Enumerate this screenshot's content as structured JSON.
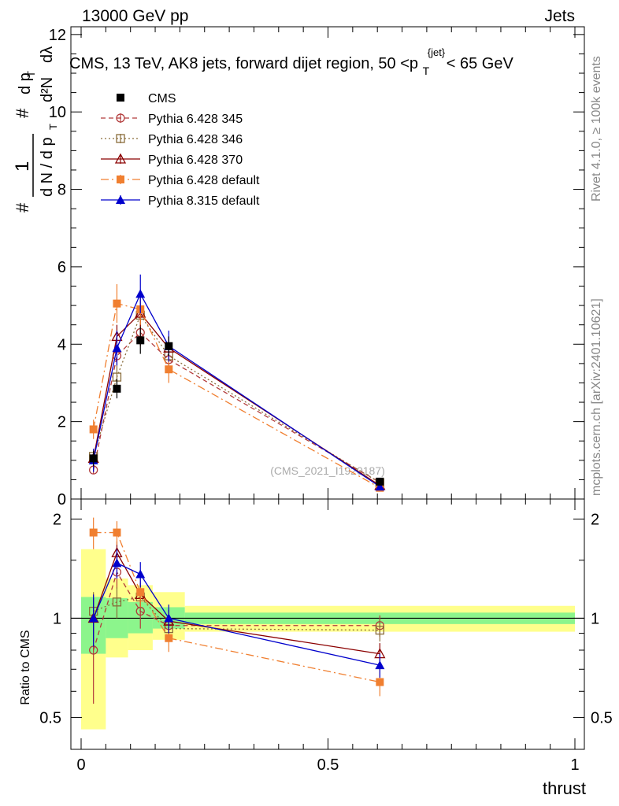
{
  "header": {
    "left": "13000 GeV pp",
    "right": "Jets"
  },
  "side_labels": {
    "rivet": "Rivet 4.1.0, ≥ 100k events",
    "mcplots": "mcplots.cern.ch [arXiv:2401.10621]"
  },
  "watermark": "(CMS_2021_I1920187)",
  "chart_data": {
    "type": "line",
    "title": "CMS, 13 TeV, AK8 jets, forward dijet region, 50 <p",
    "title_sub": "T",
    "title_sup": "{jet}",
    "title_tail": "< 65 GeV",
    "xlabel": "thrust",
    "ylabel": "1/N dN/dp_T d²N/dp_T dλ",
    "ylabel_parts": {
      "hash": "#",
      "one": "1",
      "dN": "d N / d p",
      "T": "T",
      "hash2": "#",
      "dpT": "d p",
      "T2": "T",
      "d2N": "d²N",
      "dlambda": "dλ"
    },
    "xlim": [
      0,
      1
    ],
    "ylim": [
      0,
      12.2
    ],
    "xticks": [
      "0",
      "0.5",
      "1"
    ],
    "yticks": [
      "0",
      "2",
      "4",
      "6",
      "8",
      "10",
      "12"
    ],
    "bins": [
      0.0,
      0.05,
      0.095,
      0.145,
      0.21,
      1.0
    ],
    "x": [
      0.025,
      0.0725,
      0.12,
      0.1775,
      0.605
    ],
    "legend_position": "top-left",
    "series": [
      {
        "name": "CMS",
        "values": [
          1.05,
          2.85,
          4.1,
          3.95,
          0.45
        ],
        "errors": [
          0.2,
          0.25,
          0.35,
          0.25,
          0.05
        ],
        "color": "#000000",
        "marker": "square-filled",
        "dash": "none"
      },
      {
        "name": "Pythia 6.428 345",
        "values": [
          0.75,
          3.7,
          4.3,
          3.6,
          0.43
        ],
        "errors": [
          0.1,
          0.25,
          0.35,
          0.3,
          0.03
        ],
        "color": "#b23b3b",
        "marker": "circle-open",
        "dash": "6,4"
      },
      {
        "name": "Pythia 6.428 346",
        "values": [
          1.1,
          3.15,
          4.75,
          3.7,
          0.42
        ],
        "errors": [
          0.15,
          0.3,
          0.35,
          0.3,
          0.03
        ],
        "color": "#8a6d3b",
        "marker": "square-open",
        "dash": "2,3"
      },
      {
        "name": "Pythia 6.428 370",
        "values": [
          1.05,
          4.2,
          4.8,
          3.9,
          0.35
        ],
        "errors": [
          0.15,
          0.3,
          0.35,
          0.3,
          0.03
        ],
        "color": "#8b0000",
        "marker": "triangle-open",
        "dash": "none"
      },
      {
        "name": "Pythia 6.428 default",
        "values": [
          1.8,
          5.05,
          4.9,
          3.35,
          0.29
        ],
        "errors": [
          0.25,
          0.5,
          0.4,
          0.35,
          0.03
        ],
        "color": "#f07f30",
        "marker": "square-filled",
        "dash": "10,4,2,4"
      },
      {
        "name": "Pythia 8.315 default",
        "values": [
          1.0,
          3.9,
          5.3,
          3.95,
          0.32
        ],
        "errors": [
          0.3,
          0.45,
          0.5,
          0.4,
          0.03
        ],
        "color": "#0000cc",
        "marker": "triangle-filled",
        "dash": "none"
      }
    ],
    "ratio": {
      "ylabel": "Ratio to CMS",
      "ylim": [
        0.4,
        2.3
      ],
      "yticks": [
        "0.5",
        "1",
        "2"
      ],
      "band_inner": [
        [
          0.78,
          1.16
        ],
        [
          0.87,
          1.15
        ],
        [
          0.9,
          1.12
        ],
        [
          0.93,
          1.08
        ],
        [
          0.96,
          1.04
        ]
      ],
      "band_outer": [
        [
          0.46,
          1.62
        ],
        [
          0.76,
          1.32
        ],
        [
          0.8,
          1.26
        ],
        [
          0.86,
          1.2
        ],
        [
          0.91,
          1.09
        ]
      ],
      "series": [
        {
          "values": [
            0.8,
            1.38,
            1.05,
            0.95,
            0.95
          ],
          "errors": [
            0.25,
            0.15,
            0.12,
            0.08,
            0.07
          ]
        },
        {
          "values": [
            1.05,
            1.12,
            1.16,
            0.93,
            0.92
          ],
          "errors": [
            0.15,
            0.12,
            0.1,
            0.08,
            0.07
          ]
        },
        {
          "values": [
            1.0,
            1.58,
            1.18,
            0.98,
            0.78
          ],
          "errors": [
            0.15,
            0.13,
            0.1,
            0.08,
            0.06
          ]
        },
        {
          "values": [
            1.82,
            1.82,
            1.2,
            0.87,
            0.64
          ],
          "errors": [
            0.2,
            0.15,
            0.12,
            0.08,
            0.06
          ]
        },
        {
          "values": [
            1.0,
            1.47,
            1.36,
            1.0,
            0.72
          ],
          "errors": [
            0.18,
            0.15,
            0.12,
            0.1,
            0.06
          ]
        }
      ]
    }
  }
}
